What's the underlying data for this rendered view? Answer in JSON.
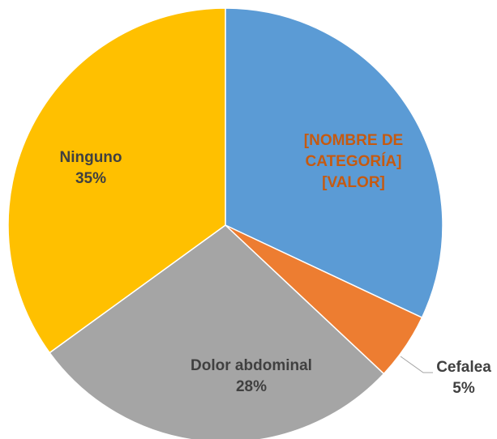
{
  "chart_data": {
    "type": "pie",
    "categories": [
      "[NOMBRE DE CATEGORÍA]",
      "Cefalea",
      "Dolor abdominal",
      "Ninguno"
    ],
    "values": [
      32,
      5,
      28,
      35
    ],
    "value_labels": [
      "[VALOR]",
      "5%",
      "28%",
      "35%"
    ],
    "colors": [
      "#5b9bd5",
      "#ed7d31",
      "#a5a5a5",
      "#ffc000"
    ]
  }
}
